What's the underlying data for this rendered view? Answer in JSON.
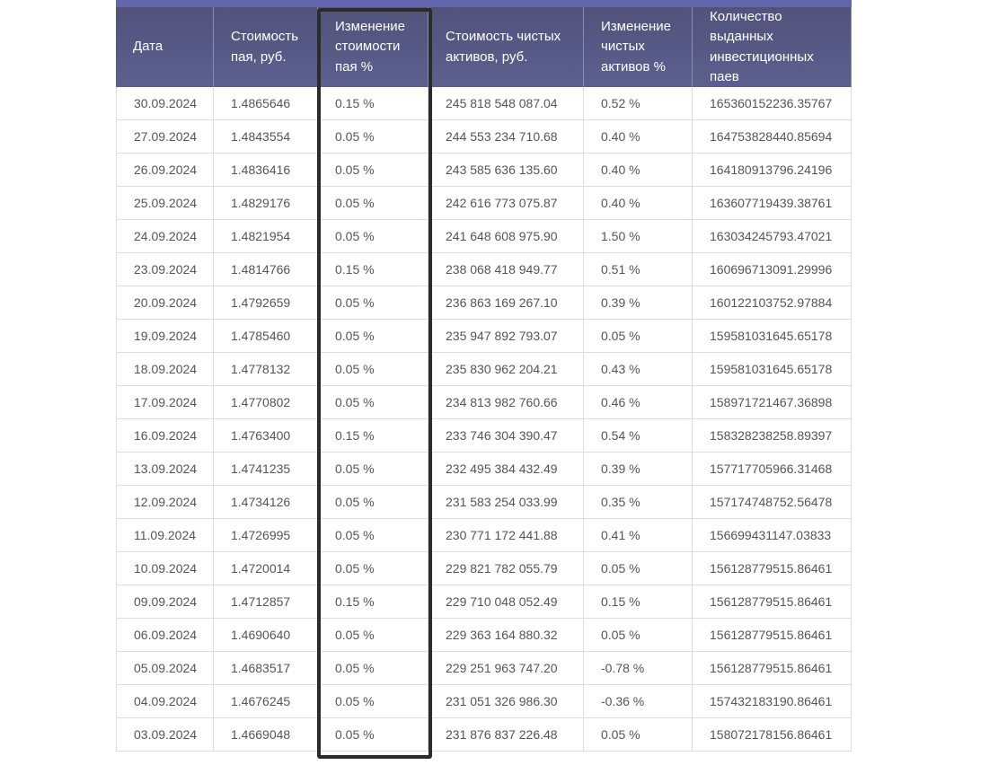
{
  "table": {
    "header": [
      "Дата",
      "Стоимость пая, руб.",
      "Изменение стоимости пая %",
      "Стоимость чистых активов, руб.",
      "Изменение чистых активов %",
      "Количество выданных инвестиционных паев"
    ],
    "rows": [
      [
        "30.09.2024",
        "1.4865646",
        "0.15 %",
        "245 818 548 087.04",
        "0.52 %",
        "165360152236.35767"
      ],
      [
        "27.09.2024",
        "1.4843554",
        "0.05 %",
        "244 553 234 710.68",
        "0.40 %",
        "164753828440.85694"
      ],
      [
        "26.09.2024",
        "1.4836416",
        "0.05 %",
        "243 585 636 135.60",
        "0.40 %",
        "164180913796.24196"
      ],
      [
        "25.09.2024",
        "1.4829176",
        "0.05 %",
        "242 616 773 075.87",
        "0.40 %",
        "163607719439.38761"
      ],
      [
        "24.09.2024",
        "1.4821954",
        "0.05 %",
        "241 648 608 975.90",
        "1.50 %",
        "163034245793.47021"
      ],
      [
        "23.09.2024",
        "1.4814766",
        "0.15 %",
        "238 068 418 949.77",
        "0.51 %",
        "160696713091.29996"
      ],
      [
        "20.09.2024",
        "1.4792659",
        "0.05 %",
        "236 863 169 267.10",
        "0.39 %",
        "160122103752.97884"
      ],
      [
        "19.09.2024",
        "1.4785460",
        "0.05 %",
        "235 947 892 793.07",
        "0.05 %",
        "159581031645.65178"
      ],
      [
        "18.09.2024",
        "1.4778132",
        "0.05 %",
        "235 830 962 204.21",
        "0.43 %",
        "159581031645.65178"
      ],
      [
        "17.09.2024",
        "1.4770802",
        "0.05 %",
        "234 813 982 760.66",
        "0.46 %",
        "158971721467.36898"
      ],
      [
        "16.09.2024",
        "1.4763400",
        "0.15 %",
        "233 746 304 390.47",
        "0.54 %",
        "158328238258.89397"
      ],
      [
        "13.09.2024",
        "1.4741235",
        "0.05 %",
        "232 495 384 432.49",
        "0.39 %",
        "157717705966.31468"
      ],
      [
        "12.09.2024",
        "1.4734126",
        "0.05 %",
        "231 583 254 033.99",
        "0.35 %",
        "157174748752.56478"
      ],
      [
        "11.09.2024",
        "1.4726995",
        "0.05 %",
        "230 771 172 441.88",
        "0.41 %",
        "156699431147.03833"
      ],
      [
        "10.09.2024",
        "1.4720014",
        "0.05 %",
        "229 821 782 055.79",
        "0.05 %",
        "156128779515.86461"
      ],
      [
        "09.09.2024",
        "1.4712857",
        "0.15 %",
        "229 710 048 052.49",
        "0.15 %",
        "156128779515.86461"
      ],
      [
        "06.09.2024",
        "1.4690640",
        "0.05 %",
        "229 363 164 880.32",
        "0.05 %",
        "156128779515.86461"
      ],
      [
        "05.09.2024",
        "1.4683517",
        "0.05 %",
        "229 251 963 747.20",
        "-0.78 %",
        "156128779515.86461"
      ],
      [
        "04.09.2024",
        "1.4676245",
        "0.05 %",
        "231 051 326 986.30",
        "-0.36 %",
        "157432183190.86461"
      ],
      [
        "03.09.2024",
        "1.4669048",
        "0.05 %",
        "231 876 837 226.48",
        "0.05 %",
        "158072178156.86461"
      ]
    ]
  }
}
